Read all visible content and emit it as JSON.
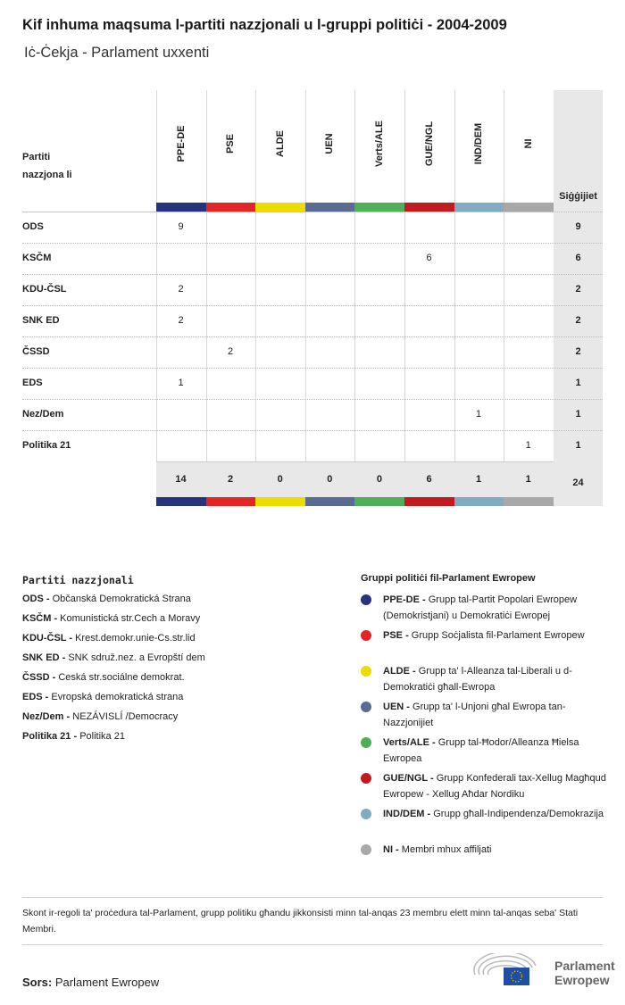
{
  "title": "Kif inhuma maqsuma l-partiti nazzjonali u l-gruppi politiċi - 2004-2009",
  "subtitle": "Iċ-Ċekja - Parlament uxxenti",
  "table": {
    "party_header": "Partiti nazzjona li",
    "total_header": "Siġġijiet",
    "groups": [
      {
        "name": "PPE-DE",
        "color": "#27347c"
      },
      {
        "name": "PSE",
        "color": "#e32526"
      },
      {
        "name": "ALDE",
        "color": "#ecdc00"
      },
      {
        "name": "UEN",
        "color": "#5a6b92"
      },
      {
        "name": "Verts/ALE",
        "color": "#4fae57"
      },
      {
        "name": "GUE/NGL",
        "color": "#c11b1f"
      },
      {
        "name": "IND/DEM",
        "color": "#82abc2"
      },
      {
        "name": "NI",
        "color": "#a8a8a8"
      }
    ],
    "rows": [
      {
        "party": "ODS",
        "values": [
          "9",
          "",
          "",
          "",
          "",
          "",
          "",
          ""
        ],
        "total": "9"
      },
      {
        "party": "KSČM",
        "values": [
          "",
          "",
          "",
          "",
          "",
          "6",
          "",
          ""
        ],
        "total": "6"
      },
      {
        "party": "KDU-ČSL",
        "values": [
          "2",
          "",
          "",
          "",
          "",
          "",
          "",
          ""
        ],
        "total": "2"
      },
      {
        "party": "SNK ED",
        "values": [
          "2",
          "",
          "",
          "",
          "",
          "",
          "",
          ""
        ],
        "total": "2"
      },
      {
        "party": "ČSSD",
        "values": [
          "",
          "2",
          "",
          "",
          "",
          "",
          "",
          ""
        ],
        "total": "2"
      },
      {
        "party": "EDS",
        "values": [
          "1",
          "",
          "",
          "",
          "",
          "",
          "",
          ""
        ],
        "total": "1"
      },
      {
        "party": "Nez/Dem",
        "values": [
          "",
          "",
          "",
          "",
          "",
          "",
          "1",
          ""
        ],
        "total": "1"
      },
      {
        "party": "Politika 21",
        "values": [
          "",
          "",
          "",
          "",
          "",
          "",
          "",
          "1"
        ],
        "total": "1"
      }
    ],
    "totals": [
      "14",
      "2",
      "0",
      "0",
      "0",
      "6",
      "1",
      "1"
    ],
    "grand_total": "24"
  },
  "legend_parties": {
    "title": "Partiti nazzjonali",
    "items": [
      {
        "abbr": "ODS -",
        "name": "Občanská Demokratická Strana"
      },
      {
        "abbr": "KSČM -",
        "name": "Komunistická str.Cech a Moravy"
      },
      {
        "abbr": "KDU-ČSL -",
        "name": "Krest.demokr.unie-Cs.str.lid"
      },
      {
        "abbr": "SNK ED -",
        "name": "SNK sdruž.nez. a Evropští dem"
      },
      {
        "abbr": "ČSSD -",
        "name": "Ceská str.sociálne demokrat."
      },
      {
        "abbr": "EDS -",
        "name": "Evropská demokratická strana"
      },
      {
        "abbr": "Nez/Dem -",
        "name": "NEZÁVISLÍ /Democracy"
      },
      {
        "abbr": "Politika 21 -",
        "name": "Politika 21"
      }
    ]
  },
  "legend_groups": {
    "title": "Gruppi politiċi fil-Parlament Ewropew",
    "items": [
      {
        "abbr": "PPE-DE -",
        "name": "Grupp tal-Partit Popolari Ewropew (Demokristjani) u Demokratiċi Ewropej",
        "color": "#27347c"
      },
      {
        "abbr": "PSE -",
        "name": "Grupp Soċjalista fil-Parlament Ewropew",
        "color": "#e32526"
      },
      {
        "abbr": "ALDE -",
        "name": "Grupp ta' l-Alleanza tal-Liberali u d-Demokratiċi għall-Ewropa",
        "color": "#ecdc00"
      },
      {
        "abbr": "UEN -",
        "name": "Grupp ta' l-Unjoni għal Ewropa tan-Nazzjonijiet",
        "color": "#5a6b92"
      },
      {
        "abbr": "Verts/ALE -",
        "name": "Grupp tal-Ħodor/Alleanza Ħielsa Ewropea",
        "color": "#4fae57"
      },
      {
        "abbr": "GUE/NGL -",
        "name": "Grupp Konfederali tax-Xellug Magħqud Ewropew - Xellug Aħdar Nordiku",
        "color": "#c11b1f"
      },
      {
        "abbr": "IND/DEM -",
        "name": "Grupp għall-Indipendenza/Demokrazija",
        "color": "#82abc2"
      },
      {
        "abbr": "NI -",
        "name": "Membri mhux affiljati",
        "color": "#a8a8a8"
      }
    ]
  },
  "note": "Skont ir-regoli ta' proċedura tal-Parlament, grupp politiku għandu jikkonsisti minn tal-anqas 23 membru elett minn tal-anqas seba' Stati Membri.",
  "source": {
    "label": "Sors:",
    "value": "Parlament Ewropew"
  },
  "logo": {
    "line1": "Parlament",
    "line2": "Ewropew"
  }
}
